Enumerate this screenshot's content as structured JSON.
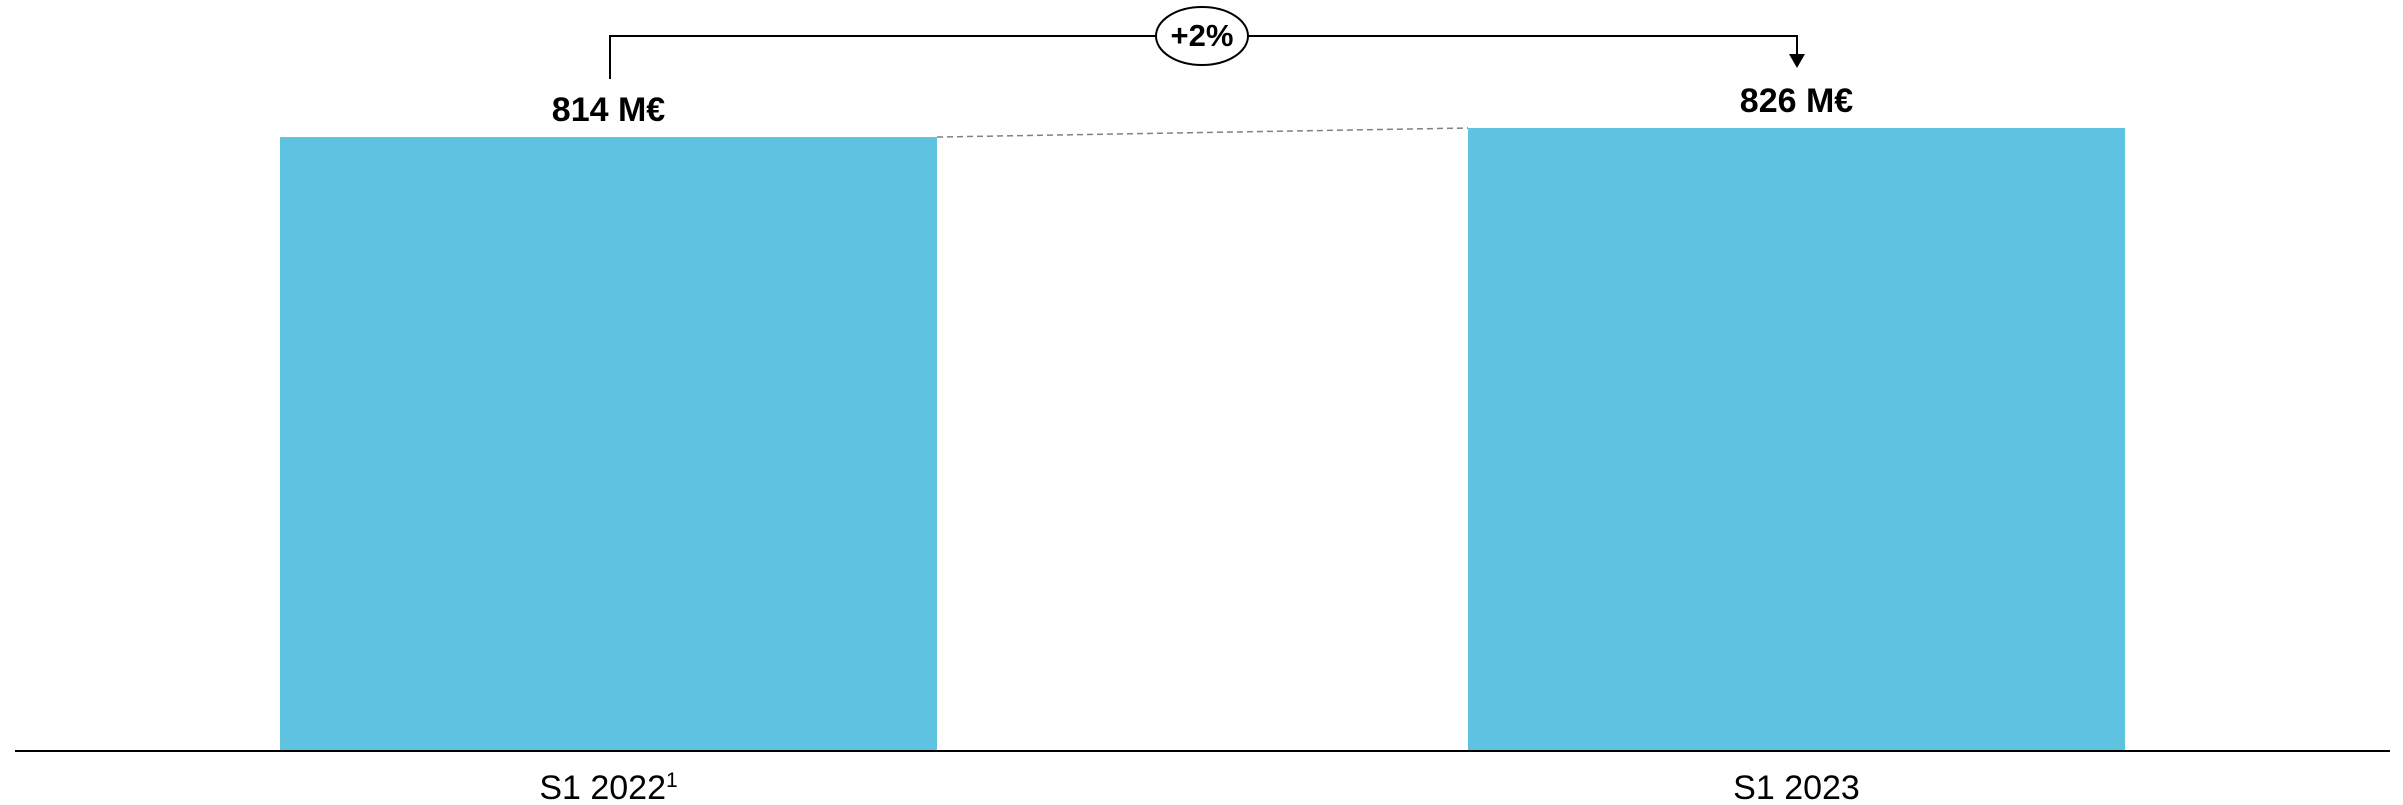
{
  "chart_data": {
    "type": "bar",
    "categories": [
      {
        "label": "S1 2022",
        "superscript": "1"
      },
      {
        "label": "S1 2023",
        "superscript": ""
      }
    ],
    "values": [
      814,
      826
    ],
    "data_labels": [
      "814 M€",
      "826 M€"
    ],
    "unit": "M€",
    "change_annotation": "+2%",
    "ylim": [
      0,
      826
    ],
    "grid": false,
    "legend": "none",
    "bar_color": "#5EC3E1"
  }
}
